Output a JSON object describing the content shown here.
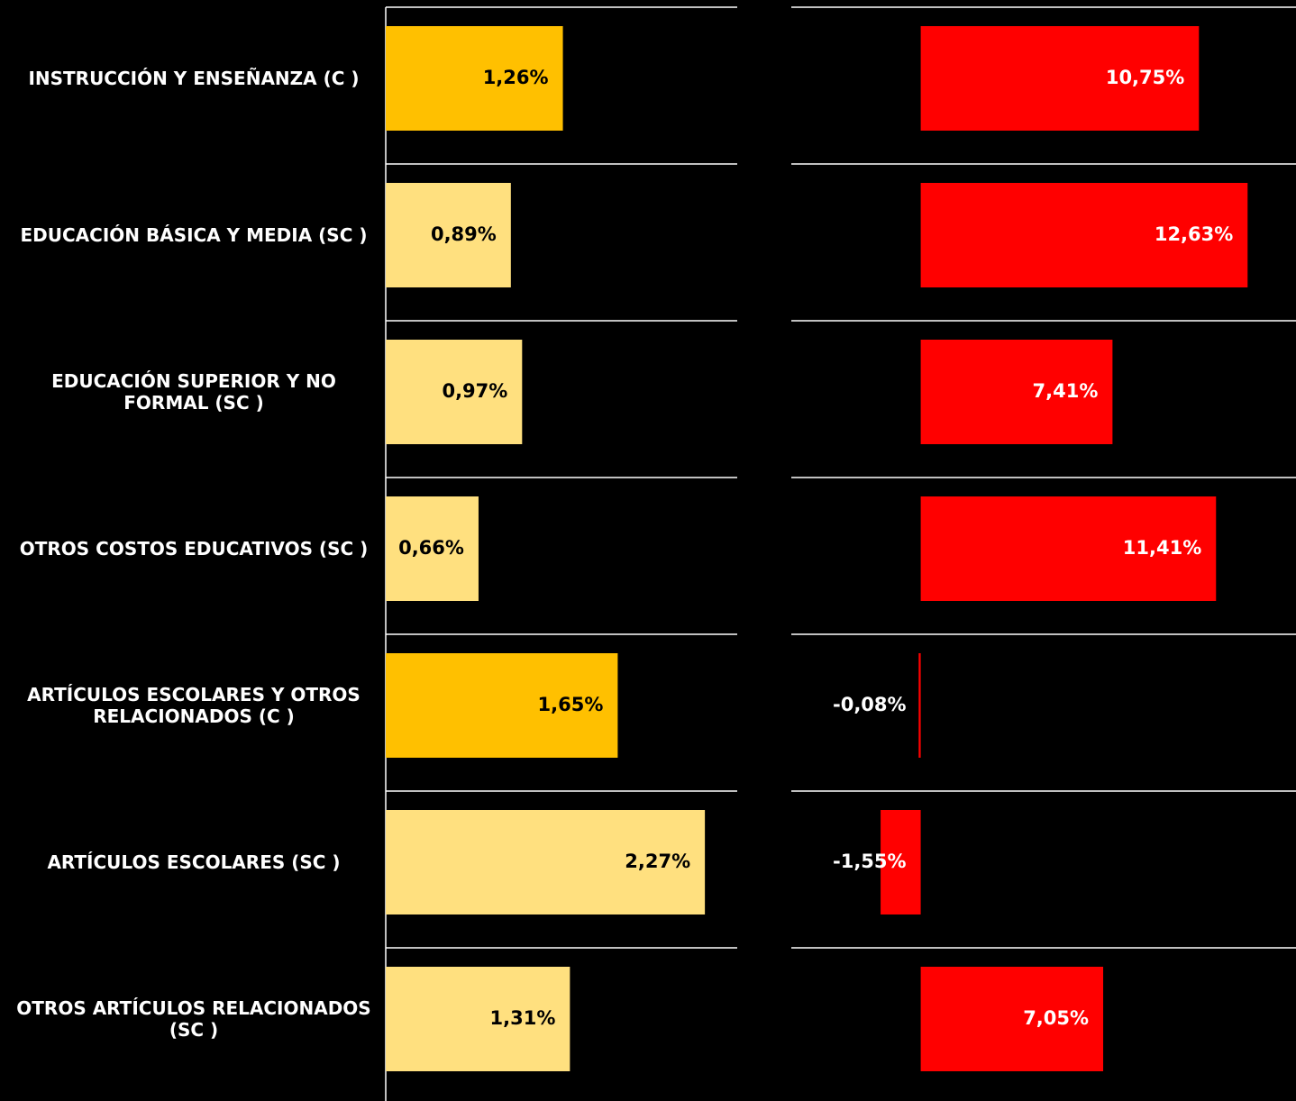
{
  "chart_data": {
    "type": "bar",
    "orientation": "horizontal",
    "categories": [
      "INSTRUCCIÓN Y ENSEÑANZA (C )",
      "EDUCACIÓN BÁSICA Y MEDIA (SC )",
      "EDUCACIÓN SUPERIOR Y NO FORMAL (SC )",
      "OTROS COSTOS EDUCATIVOS (SC )",
      "ARTÍCULOS ESCOLARES Y OTROS RELACIONADOS (C )",
      "ARTÍCULOS ESCOLARES (SC )",
      "OTROS ARTÍCULOS RELACIONADOS (SC )"
    ],
    "series": [
      {
        "values": [
          1.26,
          0.89,
          0.97,
          0.66,
          1.65,
          2.27,
          1.31
        ],
        "value_labels": [
          "1,26%",
          "0,89%",
          "0,97%",
          "0,66%",
          "1,65%",
          "2,27%",
          "1,31%"
        ],
        "color": [
          "#FFC000",
          "#FFE07F",
          "#FFE07F",
          "#FFE07F",
          "#FFC000",
          "#FFE07F",
          "#FFE07F"
        ],
        "label_color": "#000000",
        "xlim": [
          0,
          2.5
        ]
      },
      {
        "values": [
          10.75,
          12.63,
          7.41,
          11.41,
          -0.08,
          -1.55,
          7.05
        ],
        "value_labels": [
          "10,75%",
          "12,63%",
          "7,41%",
          "11,41%",
          "-0,08%",
          "-1,55%",
          "7,05%"
        ],
        "color": "#FF0000",
        "label_color": "#FFFFFF",
        "xlim": [
          -5,
          14.5
        ]
      }
    ]
  }
}
